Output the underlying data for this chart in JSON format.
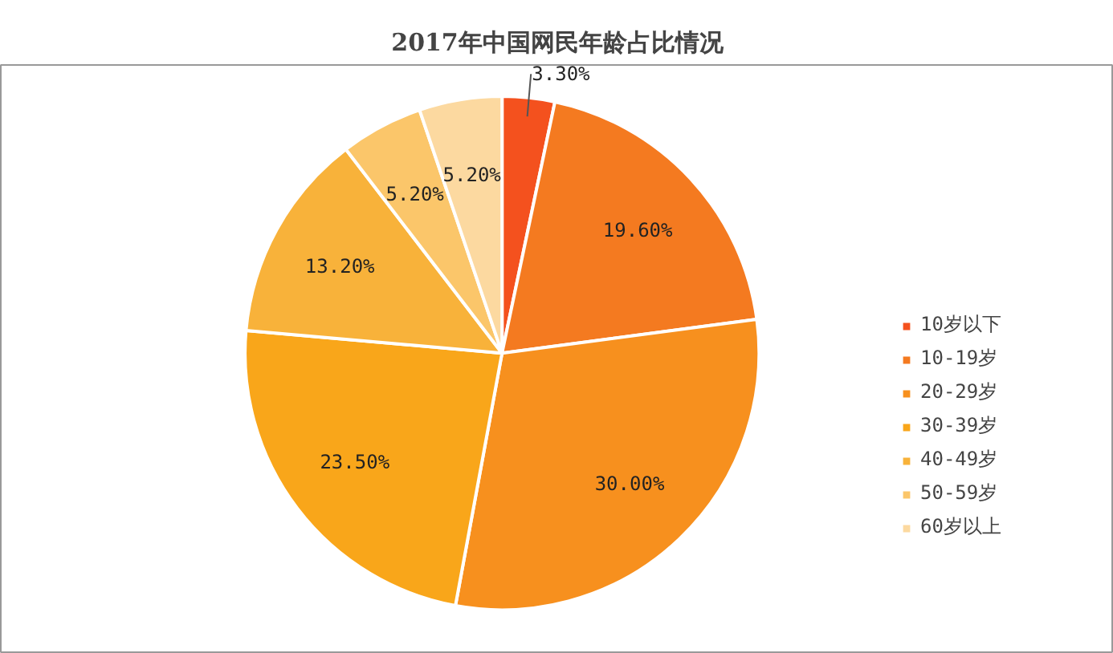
{
  "chart_data": {
    "type": "pie",
    "title": "2017年中国网民年龄占比情况",
    "categories": [
      "10岁以下",
      "10-19岁",
      "20-29岁",
      "30-39岁",
      "40-49岁",
      "50-59岁",
      "60岁以上"
    ],
    "values": [
      3.3,
      19.6,
      30.0,
      23.5,
      13.2,
      5.2,
      5.2
    ],
    "value_labels": [
      "3.30%",
      "19.60%",
      "30.00%",
      "23.50%",
      "13.20%",
      "5.20%",
      "5.20%"
    ],
    "colors": [
      "#f4511e",
      "#f47a20",
      "#f7901e",
      "#f9a61a",
      "#f8b23a",
      "#fbc66a",
      "#fcd9a0"
    ],
    "legend": "right"
  }
}
